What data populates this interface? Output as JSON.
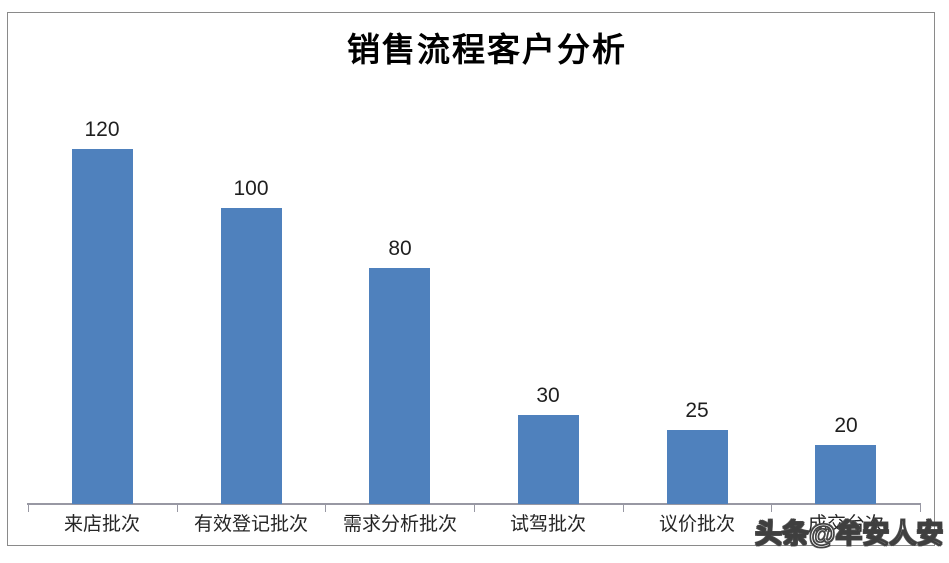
{
  "chart_data": {
    "type": "bar",
    "title": "销售流程客户分析",
    "categories": [
      "来店批次",
      "有效登记批次",
      "需求分析批次",
      "试驾批次",
      "议价批次",
      "成交台次"
    ],
    "values": [
      120,
      100,
      80,
      30,
      25,
      20
    ],
    "xlabel": "",
    "ylabel": "",
    "legend": false,
    "grid": false,
    "data_labels": true,
    "bar_color": "#4F81BD"
  },
  "watermark": {
    "text": "头条@牟安人安"
  },
  "colors": {
    "bar": "#4F81BD",
    "frame_border": "#8A8A8A",
    "axis": "#9898A3",
    "value_text": "#1F1F1F",
    "category_text": "#262626",
    "background": "#FFFFFF"
  }
}
